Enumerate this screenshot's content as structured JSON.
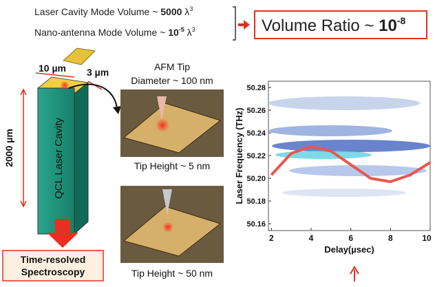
{
  "header": {
    "cavity_prefix": "Laser Cavity Mode Volume ~ ",
    "cavity_value": "5000",
    "cavity_unit": " λ",
    "cavity_exp": "3",
    "antenna_prefix": "Nano-antenna Mode Volume ~ ",
    "antenna_value": "10",
    "antenna_value_exp": "-5",
    "antenna_unit": " λ",
    "antenna_exp": "3",
    "ratio_prefix": "Volume Ratio ~ ",
    "ratio_value": "10",
    "ratio_exp": "-8"
  },
  "device": {
    "width_label": "10 µm",
    "depth_label": "3 µm",
    "height_label": "2000 µm",
    "cavity_label": "QCL Laser Cavity",
    "output_label_1": "Time-resolved",
    "output_label_2": "Spectroscopy"
  },
  "tips": {
    "title": "AFM Tip",
    "diameter": "Diameter ~ 100 nm",
    "height_1": "Tip Height ~ 5 nm",
    "height_2": "Tip Height ~ 50 nm"
  },
  "chart_data": {
    "type": "line",
    "xlabel": "Delay(µsec)",
    "ylabel": "Laser Frequency (THz)",
    "xlim": [
      1.85,
      10
    ],
    "ylim": [
      50.154,
      50.2855
    ],
    "xticks": [
      2,
      4,
      6,
      8,
      10
    ],
    "yticks": [
      50.16,
      50.18,
      {
        "value": 50.2,
        "label": "50.20"
      },
      50.22,
      50.24,
      50.26,
      50.28
    ],
    "x": [
      2,
      3,
      4,
      5,
      6,
      7,
      8,
      9,
      10
    ],
    "values": [
      50.203,
      50.222,
      50.228,
      50.224,
      50.212,
      50.2,
      50.197,
      50.203,
      50.214
    ],
    "color": "#e8584f"
  }
}
